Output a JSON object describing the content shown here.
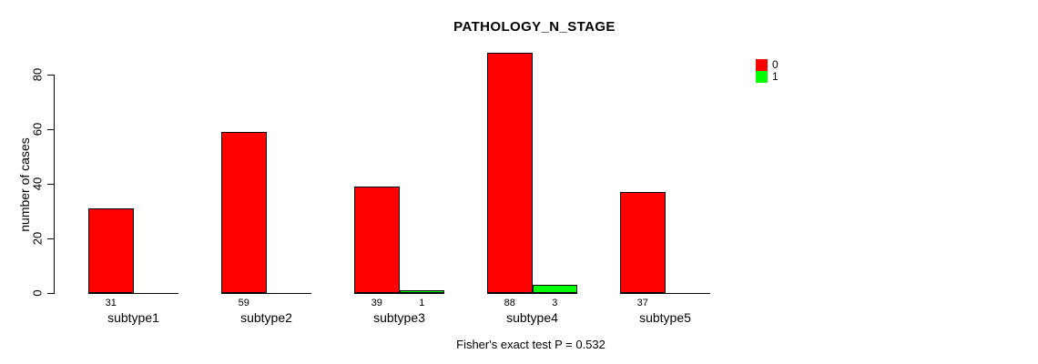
{
  "chart_data": {
    "type": "bar",
    "title": "PATHOLOGY_N_STAGE",
    "ylabel": "number of cases",
    "xlabel": "",
    "categories": [
      "subtype1",
      "subtype2",
      "subtype3",
      "subtype4",
      "subtype5"
    ],
    "series": [
      {
        "name": "0",
        "color": "#ff0000",
        "values": [
          31,
          59,
          39,
          88,
          37
        ]
      },
      {
        "name": "1",
        "color": "#00ff00",
        "values": [
          0,
          0,
          1,
          3,
          0
        ]
      }
    ],
    "bar_value_labels": {
      "shown": "nonzero only",
      "series0": [
        "31",
        "59",
        "39",
        "88",
        "37"
      ],
      "series1": [
        "",
        "",
        "1",
        "3",
        ""
      ]
    },
    "yticks": [
      0,
      20,
      40,
      60,
      80
    ],
    "ylim": [
      0,
      88
    ],
    "grid": false,
    "legend_position": "top-right",
    "legend_items": [
      {
        "label": "0",
        "color": "#ff0000"
      },
      {
        "label": "1",
        "color": "#00ff00"
      }
    ],
    "footnote": "Fisher's exact test P = 0.532"
  }
}
